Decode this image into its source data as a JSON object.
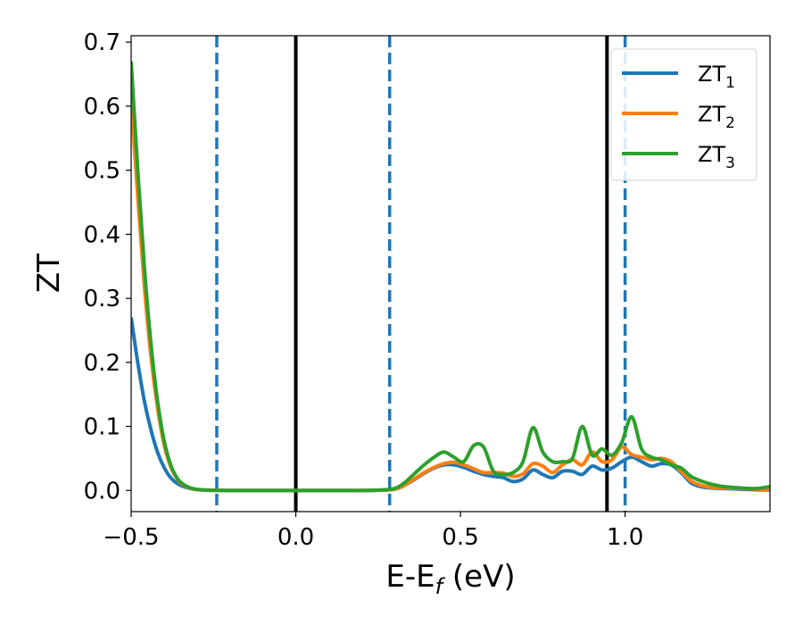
{
  "chart_data": {
    "type": "line",
    "xlabel": {
      "main": "E-E",
      "sub": "f",
      "suffix": " (eV)"
    },
    "ylabel": "ZT",
    "xlim": [
      -0.5,
      1.44
    ],
    "ylim": [
      -0.033,
      0.71
    ],
    "xticks": [
      {
        "value": -0.5,
        "label": "−0.5"
      },
      {
        "value": 0.0,
        "label": "0.0"
      },
      {
        "value": 0.5,
        "label": "0.5"
      },
      {
        "value": 1.0,
        "label": "1.0"
      }
    ],
    "yticks": [
      {
        "value": 0.0,
        "label": "0.0"
      },
      {
        "value": 0.1,
        "label": "0.1"
      },
      {
        "value": 0.2,
        "label": "0.2"
      },
      {
        "value": 0.3,
        "label": "0.3"
      },
      {
        "value": 0.4,
        "label": "0.4"
      },
      {
        "value": 0.5,
        "label": "0.5"
      },
      {
        "value": 0.6,
        "label": "0.6"
      },
      {
        "value": 0.7,
        "label": "0.7"
      }
    ],
    "grid": false,
    "legend_position": "top-right",
    "vlines": [
      {
        "x": -0.24,
        "style": "dashed",
        "color": "#1f77b4"
      },
      {
        "x": 0.0,
        "style": "solid",
        "color": "#000000"
      },
      {
        "x": 0.285,
        "style": "dashed",
        "color": "#1f77b4"
      },
      {
        "x": 0.945,
        "style": "solid",
        "color": "#000000"
      },
      {
        "x": 1.0,
        "style": "dashed",
        "color": "#1f77b4"
      }
    ],
    "series": [
      {
        "name": "ZT",
        "sub": "1",
        "color": "#1f77b4",
        "x": [
          -0.5,
          -0.48,
          -0.46,
          -0.44,
          -0.42,
          -0.4,
          -0.38,
          -0.36,
          -0.34,
          -0.32,
          -0.3,
          -0.28,
          -0.26,
          -0.24,
          -0.2,
          -0.1,
          0.0,
          0.1,
          0.2,
          0.25,
          0.3,
          0.33,
          0.36,
          0.39,
          0.42,
          0.45,
          0.48,
          0.51,
          0.54,
          0.57,
          0.6,
          0.63,
          0.66,
          0.69,
          0.72,
          0.75,
          0.78,
          0.81,
          0.84,
          0.87,
          0.9,
          0.93,
          0.96,
          0.99,
          1.02,
          1.05,
          1.08,
          1.11,
          1.14,
          1.17,
          1.2,
          1.23,
          1.26,
          1.3,
          1.35,
          1.4,
          1.44
        ],
        "y": [
          0.27,
          0.2,
          0.14,
          0.095,
          0.06,
          0.036,
          0.02,
          0.011,
          0.006,
          0.003,
          0.0015,
          0.0008,
          0.0004,
          0.0002,
          0.0,
          0.0,
          0.0,
          0.0,
          0.0,
          0.0005,
          0.002,
          0.008,
          0.017,
          0.027,
          0.035,
          0.04,
          0.04,
          0.036,
          0.03,
          0.025,
          0.022,
          0.02,
          0.014,
          0.018,
          0.032,
          0.025,
          0.02,
          0.03,
          0.03,
          0.025,
          0.038,
          0.032,
          0.035,
          0.045,
          0.052,
          0.045,
          0.038,
          0.042,
          0.04,
          0.028,
          0.012,
          0.006,
          0.004,
          0.003,
          0.002,
          0.001,
          0.001
        ]
      },
      {
        "name": "ZT",
        "sub": "2",
        "color": "#ff7f0e",
        "x": [
          -0.5,
          -0.48,
          -0.46,
          -0.44,
          -0.42,
          -0.4,
          -0.38,
          -0.36,
          -0.34,
          -0.32,
          -0.3,
          -0.28,
          -0.26,
          -0.24,
          -0.2,
          -0.1,
          0.0,
          0.1,
          0.2,
          0.25,
          0.3,
          0.33,
          0.36,
          0.39,
          0.42,
          0.45,
          0.48,
          0.51,
          0.54,
          0.57,
          0.6,
          0.63,
          0.66,
          0.69,
          0.72,
          0.75,
          0.78,
          0.81,
          0.84,
          0.87,
          0.9,
          0.93,
          0.96,
          0.99,
          1.02,
          1.05,
          1.08,
          1.11,
          1.14,
          1.17,
          1.2,
          1.23,
          1.26,
          1.3,
          1.35,
          1.4,
          1.44
        ],
        "y": [
          0.61,
          0.46,
          0.32,
          0.21,
          0.13,
          0.072,
          0.037,
          0.018,
          0.008,
          0.0035,
          0.0015,
          0.0007,
          0.0003,
          0.0001,
          0.0,
          0.0,
          0.0,
          0.0,
          0.0,
          0.0005,
          0.002,
          0.008,
          0.018,
          0.028,
          0.036,
          0.042,
          0.044,
          0.04,
          0.034,
          0.028,
          0.028,
          0.027,
          0.022,
          0.026,
          0.042,
          0.038,
          0.028,
          0.04,
          0.048,
          0.04,
          0.06,
          0.045,
          0.048,
          0.068,
          0.056,
          0.052,
          0.048,
          0.05,
          0.045,
          0.03,
          0.015,
          0.008,
          0.005,
          0.004,
          0.003,
          0.002,
          0.002
        ]
      },
      {
        "name": "ZT",
        "sub": "3",
        "color": "#2ca02c",
        "x": [
          -0.5,
          -0.48,
          -0.46,
          -0.44,
          -0.42,
          -0.4,
          -0.38,
          -0.36,
          -0.34,
          -0.32,
          -0.3,
          -0.28,
          -0.26,
          -0.24,
          -0.2,
          -0.1,
          0.0,
          0.1,
          0.2,
          0.25,
          0.3,
          0.33,
          0.36,
          0.39,
          0.42,
          0.45,
          0.48,
          0.51,
          0.54,
          0.57,
          0.6,
          0.63,
          0.66,
          0.69,
          0.72,
          0.75,
          0.78,
          0.81,
          0.84,
          0.87,
          0.9,
          0.93,
          0.96,
          0.99,
          1.02,
          1.05,
          1.08,
          1.11,
          1.14,
          1.17,
          1.2,
          1.23,
          1.26,
          1.3,
          1.35,
          1.4,
          1.44
        ],
        "y": [
          0.67,
          0.5,
          0.35,
          0.23,
          0.14,
          0.078,
          0.04,
          0.019,
          0.009,
          0.004,
          0.0017,
          0.0008,
          0.0003,
          0.0001,
          0.0,
          0.0,
          0.0,
          0.0,
          0.0,
          0.0005,
          0.003,
          0.012,
          0.026,
          0.04,
          0.052,
          0.06,
          0.052,
          0.045,
          0.07,
          0.068,
          0.03,
          0.025,
          0.028,
          0.045,
          0.098,
          0.06,
          0.045,
          0.045,
          0.05,
          0.1,
          0.055,
          0.065,
          0.055,
          0.075,
          0.115,
          0.065,
          0.052,
          0.048,
          0.04,
          0.035,
          0.022,
          0.015,
          0.01,
          0.006,
          0.004,
          0.003,
          0.006
        ]
      }
    ]
  }
}
